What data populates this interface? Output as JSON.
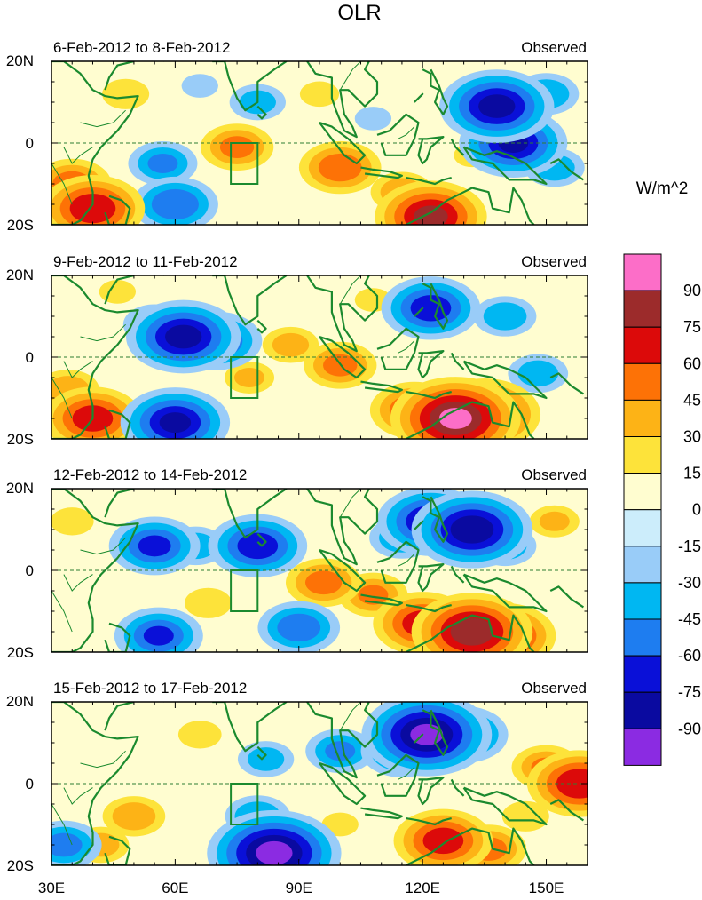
{
  "title": "OLR",
  "units": "W/m^2",
  "panel_tag": "Observed",
  "panels": [
    {
      "period": "6-Feb-2012 to 8-Feb-2012"
    },
    {
      "period": "9-Feb-2012 to 11-Feb-2012"
    },
    {
      "period": "12-Feb-2012 to 14-Feb-2012"
    },
    {
      "period": "15-Feb-2012 to 17-Feb-2012"
    }
  ],
  "lat_ticks": [
    "20N",
    "0",
    "20S"
  ],
  "lon_ticks": [
    "30E",
    "60E",
    "90E",
    "120E",
    "150E"
  ],
  "colorbar": {
    "colors": [
      "#8b2be2",
      "#0a0aa0",
      "#0a10d8",
      "#1e7df0",
      "#00b7f2",
      "#99ccf8",
      "#ccedfb",
      "#fffdd0",
      "#fde33a",
      "#fdb316",
      "#fd7206",
      "#dc0a0a",
      "#9c2b2b",
      "#fc6ec8"
    ],
    "labels": [
      "-90",
      "-75",
      "-60",
      "-45",
      "-30",
      "-15",
      "0",
      "15",
      "30",
      "45",
      "60",
      "75",
      "90"
    ]
  },
  "map_colors": {
    "land_outline": "#1b8a2e"
  },
  "chart_data": {
    "type": "heatmap",
    "title": "OLR",
    "variable": "OLR anomaly",
    "units": "W/m^2",
    "lon_range": [
      30,
      160
    ],
    "lat_range": [
      -20,
      20
    ],
    "levels": [
      -90,
      -75,
      -60,
      -45,
      -30,
      -15,
      0,
      15,
      30,
      45,
      60,
      75,
      90
    ],
    "panels": [
      {
        "period": "6-Feb-2012 to 8-Feb-2012",
        "label": "Observed",
        "anomalies": [
          {
            "lon": 35,
            "lat": -10,
            "v": 52
          },
          {
            "lon": 40,
            "lat": -16,
            "v": 72
          },
          {
            "lon": 48,
            "lat": 12,
            "v": 28
          },
          {
            "lon": 60,
            "lat": -15,
            "v": -58
          },
          {
            "lon": 57,
            "lat": -5,
            "v": -45
          },
          {
            "lon": 75,
            "lat": -1,
            "v": 48
          },
          {
            "lon": 100,
            "lat": -6,
            "v": 55
          },
          {
            "lon": 122,
            "lat": -18,
            "v": 78
          },
          {
            "lon": 115,
            "lat": -12,
            "v": 40
          },
          {
            "lon": 66,
            "lat": 14,
            "v": -20
          },
          {
            "lon": 80,
            "lat": 10,
            "v": -35
          },
          {
            "lon": 95,
            "lat": 12,
            "v": 22
          },
          {
            "lon": 138,
            "lat": 9,
            "v": -80
          },
          {
            "lon": 150,
            "lat": 12,
            "v": -42
          },
          {
            "lon": 142,
            "lat": 0,
            "v": -75
          },
          {
            "lon": 152,
            "lat": -6,
            "v": -38
          },
          {
            "lon": 108,
            "lat": 6,
            "v": -20
          },
          {
            "lon": 132,
            "lat": -3,
            "v": 20
          }
        ]
      },
      {
        "period": "9-Feb-2012 to 11-Feb-2012",
        "label": "Observed",
        "anomalies": [
          {
            "lon": 62,
            "lat": 5,
            "v": -80
          },
          {
            "lon": 55,
            "lat": 8,
            "v": -40
          },
          {
            "lon": 70,
            "lat": 4,
            "v": -62
          },
          {
            "lon": 60,
            "lat": -16,
            "v": -76
          },
          {
            "lon": 40,
            "lat": -15,
            "v": 68
          },
          {
            "lon": 34,
            "lat": -8,
            "v": 40
          },
          {
            "lon": 128,
            "lat": -15,
            "v": 92
          },
          {
            "lon": 135,
            "lat": -14,
            "v": 78
          },
          {
            "lon": 118,
            "lat": -13,
            "v": 60
          },
          {
            "lon": 100,
            "lat": -2,
            "v": 48
          },
          {
            "lon": 88,
            "lat": 3,
            "v": 35
          },
          {
            "lon": 122,
            "lat": 12,
            "v": -68
          },
          {
            "lon": 140,
            "lat": 10,
            "v": -40
          },
          {
            "lon": 148,
            "lat": -4,
            "v": -38
          },
          {
            "lon": 78,
            "lat": -5,
            "v": 30
          },
          {
            "lon": 46,
            "lat": 16,
            "v": 20
          },
          {
            "lon": 108,
            "lat": 14,
            "v": 20
          }
        ]
      },
      {
        "period": "12-Feb-2012 to 14-Feb-2012",
        "label": "Observed",
        "anomalies": [
          {
            "lon": 132,
            "lat": 10,
            "v": -85
          },
          {
            "lon": 122,
            "lat": 12,
            "v": -75
          },
          {
            "lon": 115,
            "lat": 8,
            "v": -42
          },
          {
            "lon": 140,
            "lat": 6,
            "v": -40
          },
          {
            "lon": 55,
            "lat": 6,
            "v": -62
          },
          {
            "lon": 80,
            "lat": 6,
            "v": -68
          },
          {
            "lon": 65,
            "lat": 6,
            "v": -38
          },
          {
            "lon": 56,
            "lat": -16,
            "v": -60
          },
          {
            "lon": 90,
            "lat": -14,
            "v": -55
          },
          {
            "lon": 132,
            "lat": -15,
            "v": 85
          },
          {
            "lon": 120,
            "lat": -13,
            "v": 68
          },
          {
            "lon": 140,
            "lat": -16,
            "v": 70
          },
          {
            "lon": 96,
            "lat": -3,
            "v": 50
          },
          {
            "lon": 108,
            "lat": -6,
            "v": 45
          },
          {
            "lon": 35,
            "lat": 12,
            "v": 25
          },
          {
            "lon": 68,
            "lat": -8,
            "v": 28
          },
          {
            "lon": 152,
            "lat": 12,
            "v": 30
          }
        ]
      },
      {
        "period": "15-Feb-2012 to 17-Feb-2012",
        "label": "Observed",
        "anomalies": [
          {
            "lon": 121,
            "lat": 12,
            "v": -92
          },
          {
            "lon": 115,
            "lat": 8,
            "v": -55
          },
          {
            "lon": 130,
            "lat": 12,
            "v": -60
          },
          {
            "lon": 100,
            "lat": 8,
            "v": -45
          },
          {
            "lon": 84,
            "lat": -17,
            "v": -95
          },
          {
            "lon": 80,
            "lat": -8,
            "v": -42
          },
          {
            "lon": 33,
            "lat": -15,
            "v": -50
          },
          {
            "lon": 82,
            "lat": 6,
            "v": -35
          },
          {
            "lon": 158,
            "lat": 0,
            "v": 72
          },
          {
            "lon": 150,
            "lat": 4,
            "v": 45
          },
          {
            "lon": 125,
            "lat": -14,
            "v": 68
          },
          {
            "lon": 136,
            "lat": -16,
            "v": 50
          },
          {
            "lon": 50,
            "lat": -8,
            "v": 40
          },
          {
            "lon": 42,
            "lat": -15,
            "v": 35
          },
          {
            "lon": 66,
            "lat": 12,
            "v": 25
          },
          {
            "lon": 100,
            "lat": -10,
            "v": 20
          },
          {
            "lon": 145,
            "lat": -8,
            "v": 28
          }
        ]
      }
    ]
  }
}
